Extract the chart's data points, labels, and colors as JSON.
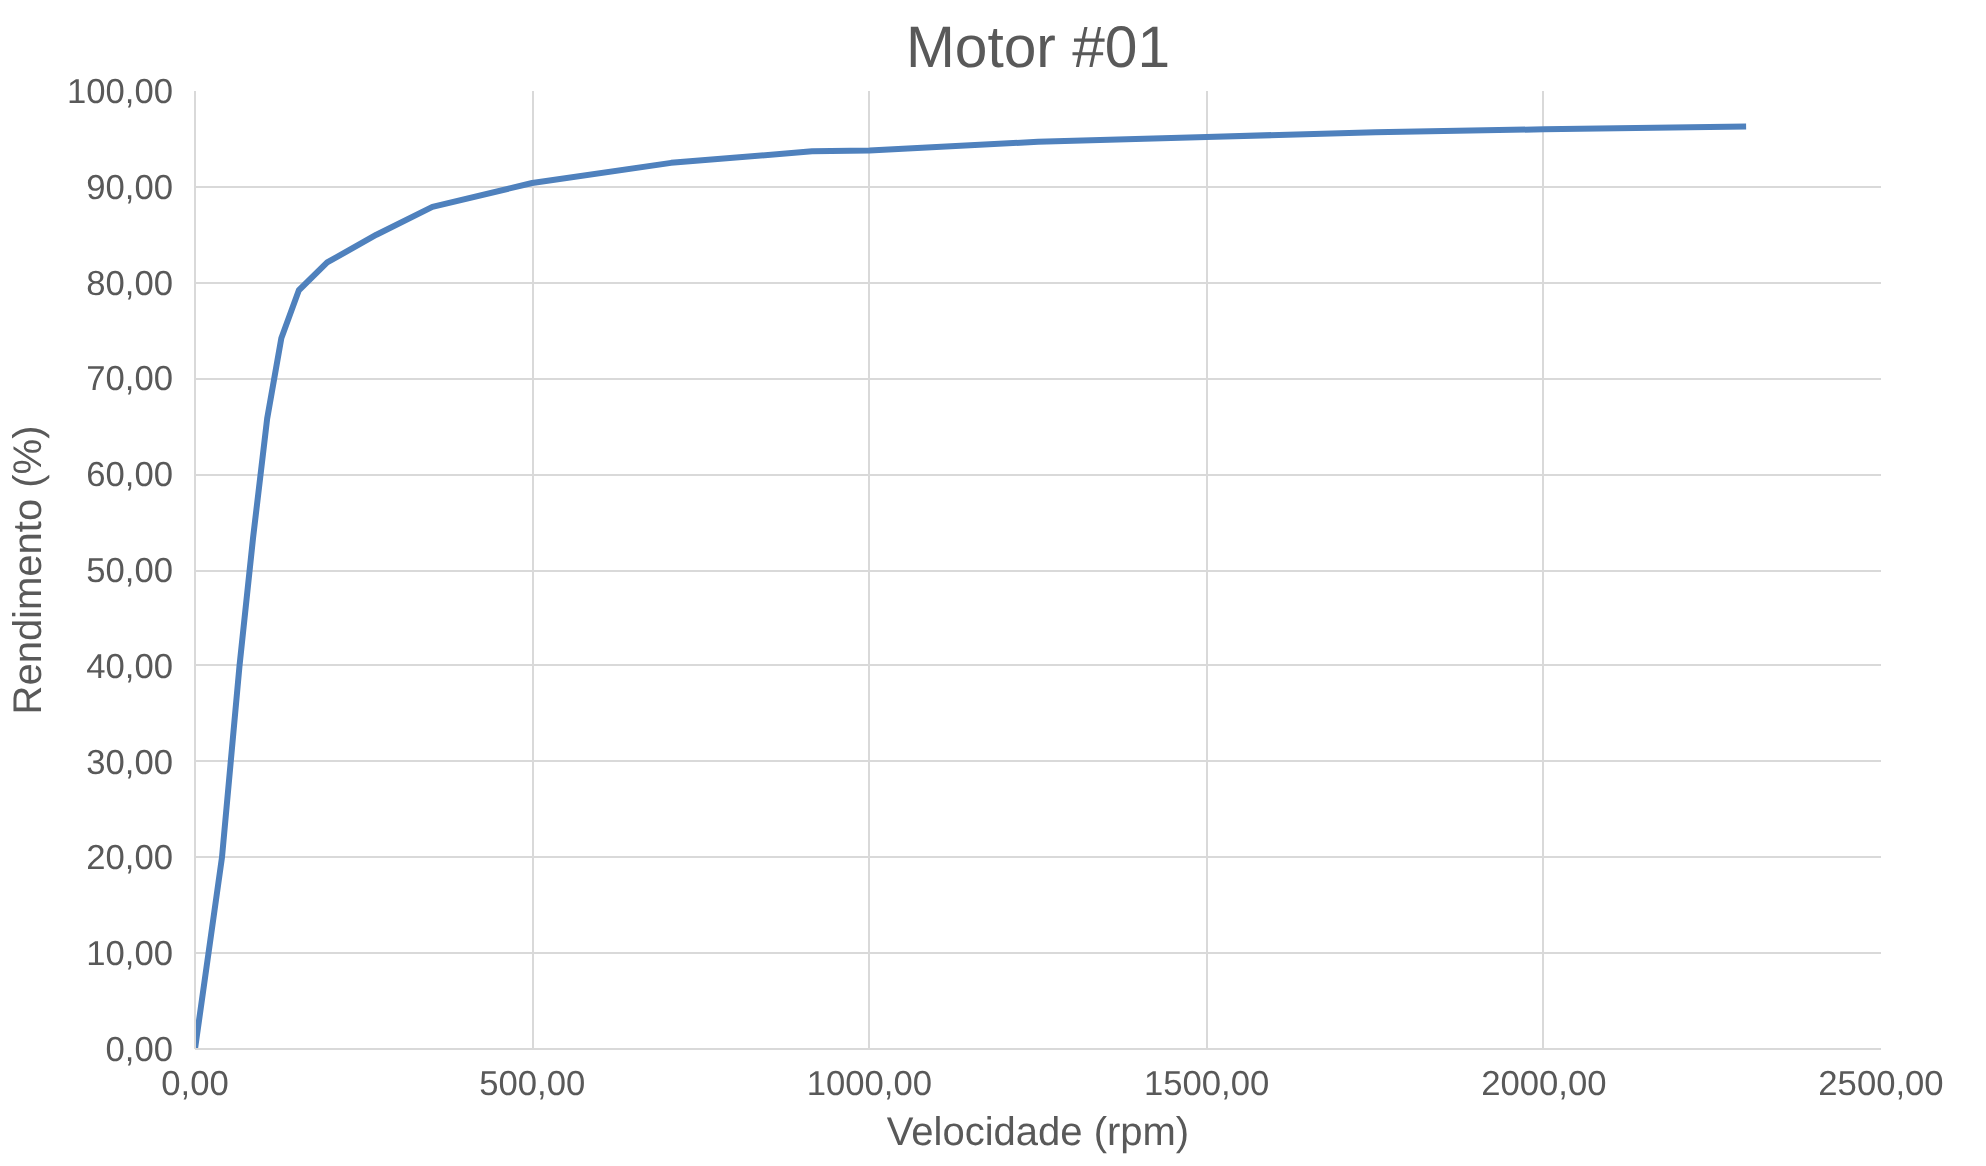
{
  "chart_data": {
    "type": "line",
    "title": "Motor #01",
    "xlabel": "Velocidade (rpm)",
    "ylabel": "Rendimento (%)",
    "x": [
      0,
      40,
      66,
      86,
      107,
      128,
      154,
      196,
      269,
      352,
      500,
      706,
      915,
      1000,
      1250,
      1500,
      1750,
      2000,
      2300
    ],
    "series": [
      {
        "color": "#4f81bd",
        "values": [
          0,
          20,
          40,
          53.3,
          65.8,
          74.2,
          79.2,
          82.1,
          85,
          87.9,
          90.4,
          92.5,
          93.7,
          93.8,
          94.7,
          95.2,
          95.7,
          96,
          96.3
        ]
      }
    ],
    "xlim": [
      0,
      2500
    ],
    "ylim": [
      0,
      100
    ],
    "xticks": [
      {
        "value": 0,
        "label": "0,00"
      },
      {
        "value": 500,
        "label": "500,00"
      },
      {
        "value": 1000,
        "label": "1000,00"
      },
      {
        "value": 1500,
        "label": "1500,00"
      },
      {
        "value": 2000,
        "label": "2000,00"
      },
      {
        "value": 2500,
        "label": "2500,00"
      }
    ],
    "yticks": [
      {
        "value": 0,
        "label": "0,00"
      },
      {
        "value": 10,
        "label": "10,00"
      },
      {
        "value": 20,
        "label": "20,00"
      },
      {
        "value": 30,
        "label": "30,00"
      },
      {
        "value": 40,
        "label": "40,00"
      },
      {
        "value": 50,
        "label": "50,00"
      },
      {
        "value": 60,
        "label": "60,00"
      },
      {
        "value": 70,
        "label": "70,00"
      },
      {
        "value": 80,
        "label": "80,00"
      },
      {
        "value": 90,
        "label": "90,00"
      },
      {
        "value": 100,
        "label": "100,00"
      }
    ],
    "grid": true,
    "marker": "none",
    "line_style": "solid"
  }
}
